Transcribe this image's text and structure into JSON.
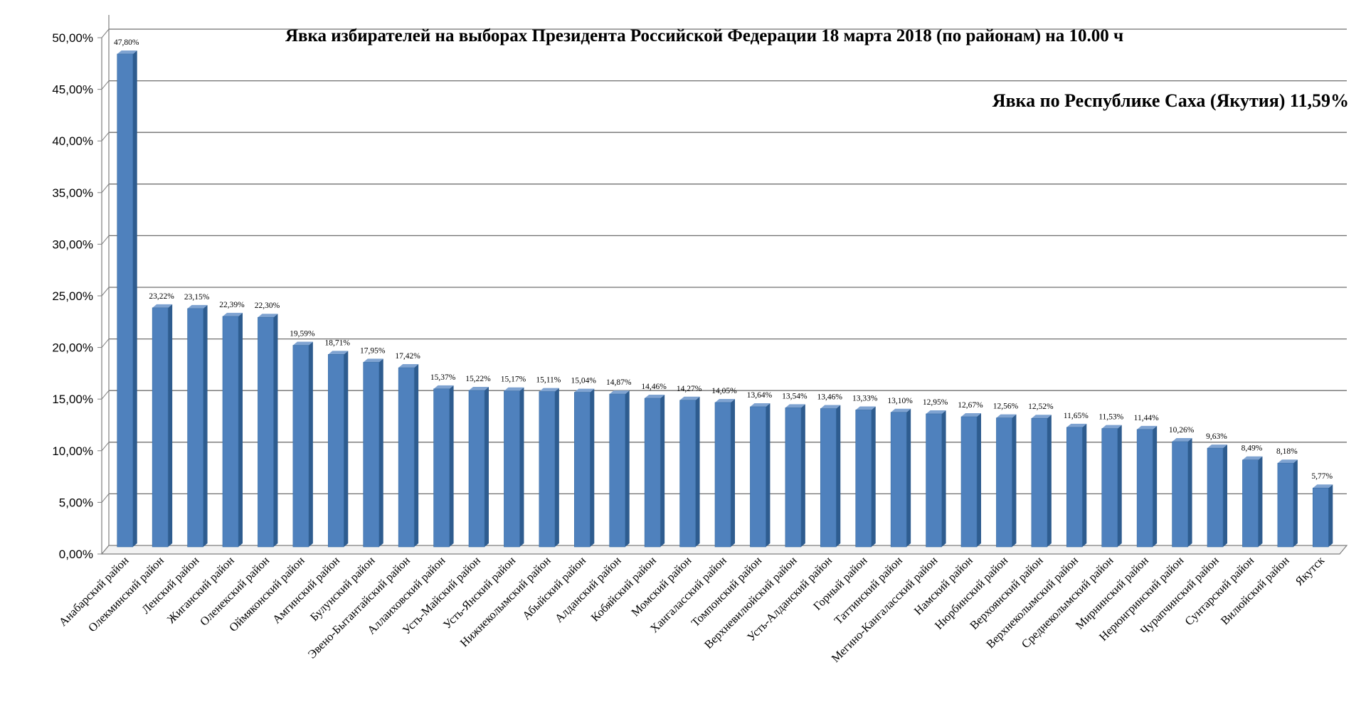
{
  "chart_data": {
    "type": "bar",
    "title": "Явка избирателей на выборах Президента Российской Федерации 18 марта 2018  (по районам) на 10.00 ч",
    "subtitle": "Явка по Республике Саха (Якутия) 11,59%",
    "ylim": [
      0,
      50
    ],
    "ytick_labels": [
      "0,00%",
      "5,00%",
      "10,00%",
      "15,00%",
      "20,00%",
      "25,00%",
      "30,00%",
      "35,00%",
      "40,00%",
      "45,00%",
      "50,00%"
    ],
    "grid": true,
    "legend": "none",
    "bar_color": "#4F81BD",
    "categories": [
      "Анабарский район",
      "Олекминский район",
      "Ленский район",
      "Жиганский район",
      "Оленекский район",
      "Оймяконский район",
      "Амгинский район",
      "Булунский район",
      "Эвено-Бытантайский район",
      "Аллаиховский район",
      "Усть-Майский район",
      "Усть-Янский район",
      "Нижнеколымский район",
      "Абыйский район",
      "Алданский район",
      "Кобяйский район",
      "Момский район",
      "Хангаласский район",
      "Томпонский район",
      "Верхневилюйский район",
      "Усть-Алданский район",
      "Горный район",
      "Таттинский район",
      "Мегино-Кангаласский район",
      "Намский район",
      "Нюрбинский район",
      "Верхоянский район",
      "Верхнеколымский район",
      "Среднеколымский район",
      "Мирнинский район",
      "Нерюнгринский район",
      "Чурапчинский район",
      "Сунтарский район",
      "Вилюйский район",
      "Якутск"
    ],
    "values": [
      47.8,
      23.22,
      23.15,
      22.39,
      22.3,
      19.59,
      18.71,
      17.95,
      17.42,
      15.37,
      15.22,
      15.17,
      15.11,
      15.04,
      14.87,
      14.46,
      14.27,
      14.05,
      13.64,
      13.54,
      13.46,
      13.33,
      13.1,
      12.95,
      12.67,
      12.56,
      12.52,
      11.65,
      11.53,
      11.44,
      10.26,
      9.63,
      8.49,
      8.18,
      5.77
    ],
    "data_labels": [
      "47,80%",
      "23,22%",
      "23,15%",
      "22,39%",
      "22,30%",
      "19,59%",
      "18,71%",
      "17,95%",
      "17,42%",
      "15,37%",
      "15,22%",
      "15,17%",
      "15,11%",
      "15,04%",
      "14,87%",
      "14,46%",
      "14,27%",
      "14,05%",
      "13,64%",
      "13,54%",
      "13,46%",
      "13,33%",
      "13,10%",
      "12,95%",
      "12,67%",
      "12,56%",
      "12,52%",
      "11,65%",
      "11,53%",
      "11,44%",
      "10,26%",
      "9,63%",
      "8,49%",
      "8,18%",
      "5,77%"
    ]
  }
}
